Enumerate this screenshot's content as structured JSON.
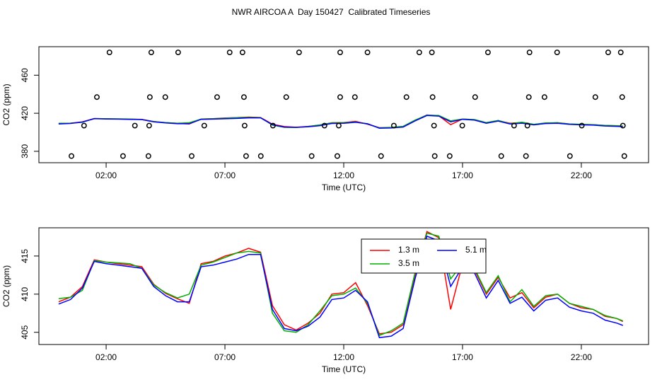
{
  "chart_data": [
    {
      "type": "scatter",
      "title": "NWR AIRCOA A  Day 150427  Calibrated Timeseries",
      "x_label": "Time (UTC)",
      "y_label": "CO2 (ppm)",
      "xlim": [
        -0.83,
        24.83
      ],
      "ylim": [
        368,
        490
      ],
      "xticks": [
        {
          "value": 2,
          "label": "02:00"
        },
        {
          "value": 7,
          "label": "07:00"
        },
        {
          "value": 12,
          "label": "12:00"
        },
        {
          "value": 17,
          "label": "17:00"
        },
        {
          "value": 22,
          "label": "22:00"
        }
      ],
      "yticks": [
        380,
        420,
        460
      ],
      "color": "#000000",
      "x": [
        2.14,
        3.9,
        5.03,
        7.2,
        7.74,
        10.12,
        11.85,
        13.0,
        15.18,
        15.71,
        18.07,
        19.82,
        20.98,
        23.13,
        23.66,
        1.61,
        3.84,
        4.49,
        6.67,
        7.8,
        9.58,
        11.85,
        12.47,
        14.64,
        15.74,
        17.53,
        19.79,
        20.45,
        22.59,
        23.72,
        1.07,
        3.21,
        3.81,
        6.13,
        7.83,
        9.02,
        11.19,
        11.79,
        14.11,
        15.8,
        16.99,
        19.17,
        19.73,
        22.02,
        23.75,
        0.54,
        2.71,
        3.78,
        5.6,
        7.89,
        8.51,
        10.65,
        11.73,
        13.57,
        15.83,
        16.46,
        18.63,
        19.67,
        21.52,
        23.81
      ],
      "y": [
        484,
        484,
        484,
        484,
        484,
        484,
        484,
        484,
        484,
        484,
        484,
        484,
        484,
        484,
        484,
        437,
        437,
        437,
        437,
        437,
        437,
        437,
        437,
        437,
        437,
        437,
        437,
        437,
        437,
        437,
        407,
        407,
        407,
        407,
        407,
        407,
        407,
        407,
        407,
        407,
        407,
        407,
        407,
        407,
        407,
        375,
        375,
        375,
        375,
        375,
        375,
        375,
        375,
        375,
        375,
        375,
        375,
        375,
        375,
        375
      ]
    },
    {
      "type": "line",
      "x_label": "Time (UTC)",
      "y_label": "CO2 (ppm)",
      "xlim": [
        -0.83,
        24.83
      ],
      "ylim": [
        403.4,
        418.7
      ],
      "xticks": [
        {
          "value": 2,
          "label": "02:00"
        },
        {
          "value": 7,
          "label": "07:00"
        },
        {
          "value": 12,
          "label": "12:00"
        },
        {
          "value": 17,
          "label": "17:00"
        },
        {
          "value": 22,
          "label": "22:00"
        }
      ],
      "yticks": [
        405,
        410,
        415
      ],
      "legend": "top",
      "x": [
        0,
        0.5,
        1,
        1.5,
        2,
        2.5,
        3,
        3.5,
        4,
        4.5,
        5,
        5.5,
        6,
        6.5,
        7,
        7.5,
        8,
        8.5,
        9,
        9.5,
        10,
        10.5,
        11,
        11.5,
        12,
        12.5,
        13,
        13.5,
        14,
        14.5,
        15,
        15.5,
        16,
        16.5,
        17,
        17.5,
        18,
        18.5,
        19,
        19.5,
        20,
        20.5,
        21,
        21.5,
        22,
        22.5,
        23,
        23.5,
        23.75
      ],
      "series": [
        {
          "name": "1.3 m",
          "color": "#ff0000",
          "values": [
            409.0,
            409.6,
            411.0,
            414.5,
            414.2,
            414.0,
            413.8,
            413.6,
            411.3,
            410.1,
            409.4,
            408.8,
            414.0,
            414.3,
            415.0,
            415.4,
            416.0,
            415.5,
            408.5,
            406.0,
            405.3,
            406.2,
            407.5,
            410.0,
            410.2,
            411.5,
            408.5,
            404.8,
            405.0,
            406.0,
            412.5,
            418.2,
            417.4,
            408.0,
            414.0,
            413.2,
            410.0,
            412.2,
            409.5,
            410.2,
            408.2,
            409.6,
            410.0,
            408.8,
            408.2,
            408.0,
            407.1,
            406.8,
            406.4
          ]
        },
        {
          "name": "3.5 m",
          "color": "#00b000",
          "values": [
            409.4,
            409.6,
            410.5,
            414.4,
            414.2,
            414.1,
            414.0,
            413.4,
            411.2,
            410.2,
            409.5,
            410.0,
            413.8,
            414.2,
            414.8,
            415.4,
            415.6,
            415.4,
            407.5,
            405.2,
            405.0,
            406.0,
            407.8,
            409.8,
            410.0,
            410.8,
            408.8,
            404.6,
            405.2,
            406.2,
            412.8,
            418.0,
            417.6,
            412.0,
            414.0,
            413.4,
            410.2,
            412.4,
            409.0,
            410.6,
            408.4,
            409.8,
            410.0,
            408.8,
            408.4,
            408.0,
            407.2,
            406.8,
            406.5
          ]
        },
        {
          "name": "5.1 m",
          "color": "#0000ff",
          "values": [
            408.7,
            409.3,
            410.8,
            414.3,
            414.0,
            413.8,
            413.6,
            413.4,
            411.0,
            409.8,
            409.0,
            409.0,
            413.6,
            413.8,
            414.2,
            414.6,
            415.2,
            415.2,
            408.0,
            405.5,
            405.2,
            405.8,
            407.0,
            409.3,
            409.5,
            410.5,
            409.0,
            404.3,
            404.5,
            405.5,
            412.0,
            417.6,
            417.0,
            411.0,
            413.6,
            412.8,
            409.5,
            411.8,
            408.8,
            409.6,
            407.8,
            409.2,
            409.5,
            408.3,
            407.8,
            407.5,
            406.6,
            406.2,
            405.9
          ]
        }
      ]
    }
  ]
}
